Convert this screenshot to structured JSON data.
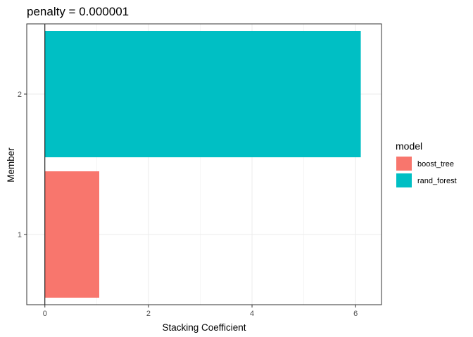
{
  "chart_data": {
    "type": "bar",
    "orientation": "horizontal",
    "title": "penalty = 0.000001",
    "xlabel": "Stacking Coefficient",
    "ylabel": "Member",
    "categories": [
      "1",
      "2"
    ],
    "values": [
      1.05,
      6.1
    ],
    "bar_models": [
      "boost_tree",
      "rand_forest"
    ],
    "xlim": [
      -0.35,
      6.5
    ],
    "x_ticks": [
      0,
      2,
      4,
      6
    ],
    "grid": true,
    "reference_line_x": 0,
    "legend": {
      "title": "model",
      "position": "right",
      "entries": [
        {
          "label": "boost_tree",
          "color": "#F8766D"
        },
        {
          "label": "rand_forest",
          "color": "#00BFC4"
        }
      ]
    }
  },
  "colors": {
    "boost_tree": "#F8766D",
    "rand_forest": "#00BFC4",
    "grid": "#ebebeb",
    "frame": "#333333"
  }
}
